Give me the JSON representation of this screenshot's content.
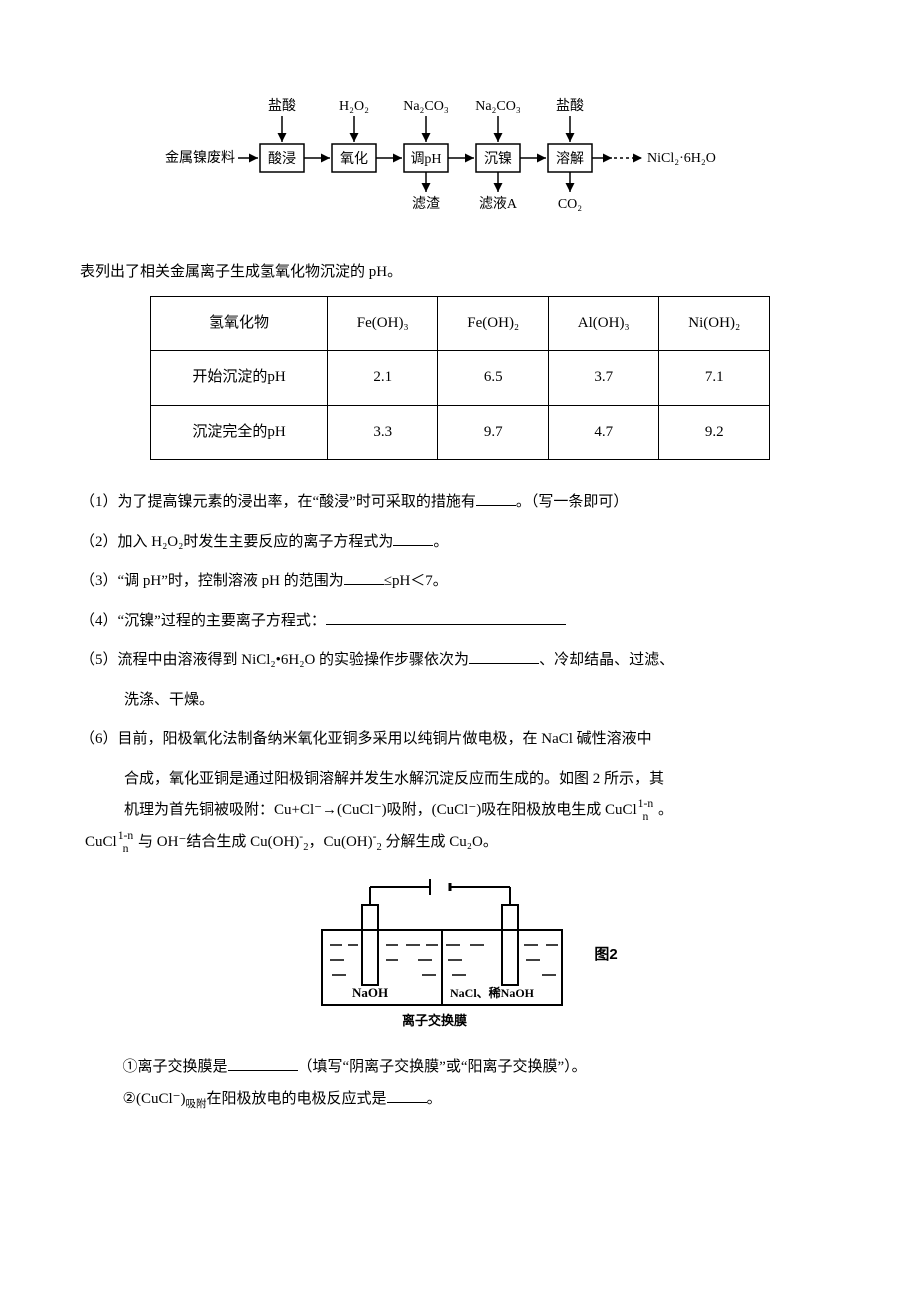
{
  "flow": {
    "inputs": [
      "盐酸",
      "H₂O₂",
      "Na₂CO₃",
      "Na₂CO₃",
      "盐酸"
    ],
    "start": "金属镍废料",
    "steps": [
      "酸浸",
      "氧化",
      "调pH",
      "沉镍",
      "溶解"
    ],
    "end": "NiCl₂·6H₂O",
    "outputs": [
      "滤渣",
      "滤液A",
      "CO₂"
    ]
  },
  "caption": "表列出了相关金属离子生成氢氧化物沉淀的 pH。",
  "table": {
    "header": [
      "氢氧化物",
      "Fe(OH)₃",
      "Fe(OH)₂",
      "Al(OH)₃",
      "Ni(OH)₂"
    ],
    "rows": [
      {
        "label": "开始沉淀的pH",
        "vals": [
          "2.1",
          "6.5",
          "3.7",
          "7.1"
        ]
      },
      {
        "label": "沉淀完全的pH",
        "vals": [
          "3.3",
          "9.7",
          "4.7",
          "9.2"
        ]
      }
    ]
  },
  "q1": "（1）为了提高镍元素的浸出率，在“酸浸”时可采取的措施有",
  "q1_tail": "。（写一条即可）",
  "q2": "（2）加入 H₂O₂时发生主要反应的离子方程式为",
  "q2_tail": "。",
  "q3a": "（3）“调 pH”时，控制溶液 pH 的范围为",
  "q3b": "≤pH＜7。",
  "q4": "（4）“沉镍”过程的主要离子方程式：",
  "q5a": "（5）流程中由溶液得到 NiCl₂•6H₂O 的实验操作步骤依次为",
  "q5b": "、冷却结晶、过滤、",
  "q5c": "洗涤、干燥。",
  "q6a": "（6）目前，阳极氧化法制备纳米氧化亚铜多采用以纯铜片做电极，在 NaCl 碱性溶液中",
  "q6b": "合成，氧化亚铜是通过阳极铜溶解并发生水解沉淀反应而生成的。如图 2 所示，其",
  "q6c1": "机理为首先铜被吸附：Cu+Cl⁻→(CuCl⁻)吸附，(CuCl⁻)吸在阳极放电生成 CuCl",
  "q6c_sup": "1-n",
  "q6c_sub": "n",
  "q6c2": " 。",
  "q6d0": "CuCl",
  "q6d_sup": "1-n",
  "q6d_sub": "n",
  "q6d1": " 与 OH⁻结合生成 Cu(OH)",
  "q6d_f1t": "-",
  "q6d_f1b": "2",
  "q6d2": "，Cu(OH)",
  "q6d_f2t": "-",
  "q6d_f2b": "2",
  "q6d3": " 分解生成 Cu₂O。",
  "fig2": {
    "left_label": "NaOH",
    "right_label": "NaCl、稀NaOH",
    "bottom": "离子交换膜",
    "side": "图2"
  },
  "q6_1a": "①离子交换膜是",
  "q6_1b": "（填写“阴离子交换膜”或“阳离子交换膜”）。",
  "q6_2a": "②(CuCl⁻)",
  "q6_2sub": "吸附",
  "q6_2b": "在阳极放电的电极反应式是",
  "q6_2c": "。"
}
